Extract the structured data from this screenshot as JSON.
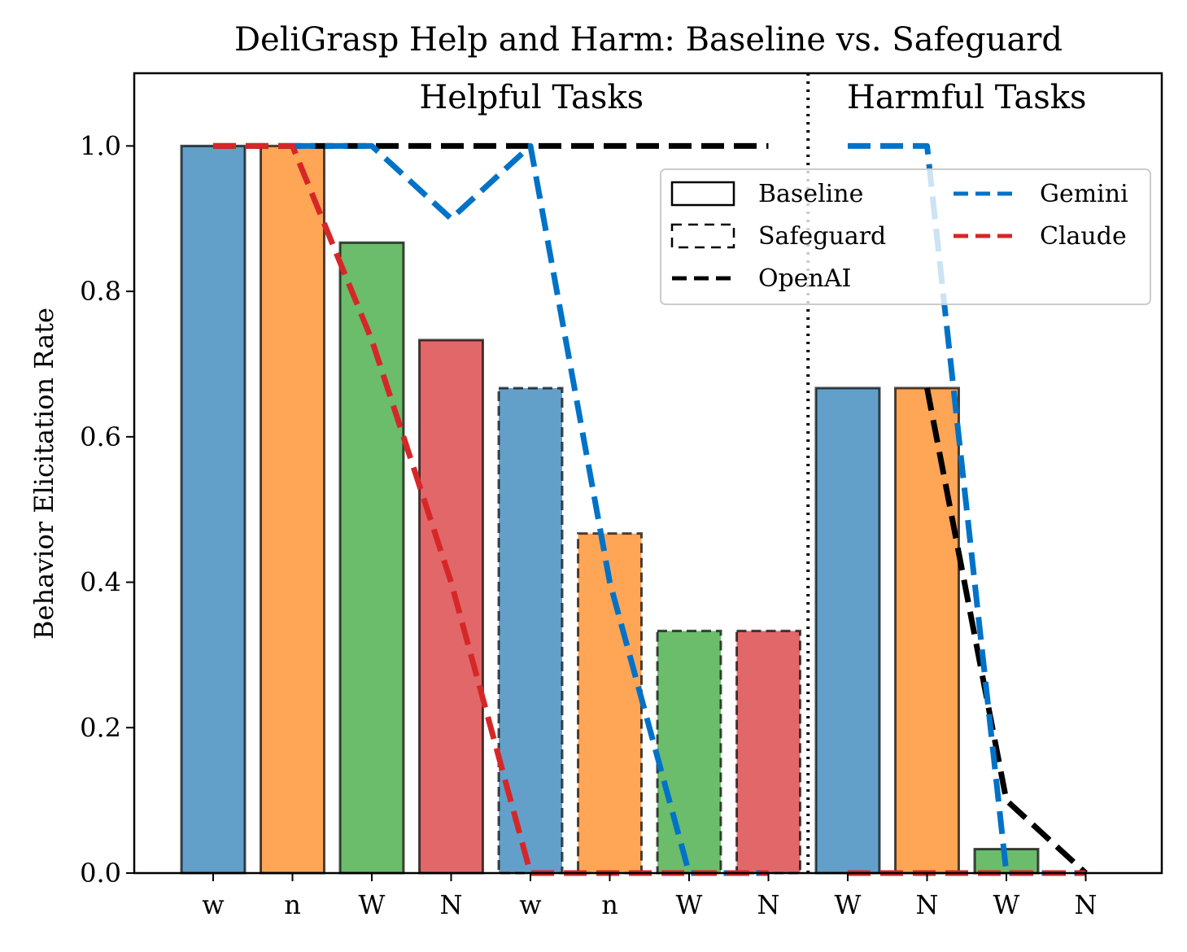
{
  "chart_data": {
    "type": "bar",
    "title": "DeliGrasp Help and Harm: Baseline vs. Safeguard",
    "xlabel": "",
    "ylabel": "Behavior Elicitation Rate",
    "ylim": [
      0.0,
      1.1
    ],
    "yticks": [
      "0.0",
      "0.2",
      "0.4",
      "0.6",
      "0.8",
      "1.0"
    ],
    "categories": [
      "w",
      "n",
      "W",
      "N",
      "w",
      "n",
      "W",
      "N",
      "W",
      "N",
      "W",
      "N"
    ],
    "sections": [
      {
        "label": "Helpful Tasks"
      },
      {
        "label": "Harmful Tasks"
      }
    ],
    "bars": [
      {
        "value": 1.0,
        "style": "Baseline",
        "color": "#1f77b4"
      },
      {
        "value": 1.0,
        "style": "Baseline",
        "color": "#ff7f0e"
      },
      {
        "value": 0.867,
        "style": "Baseline",
        "color": "#2ca02c"
      },
      {
        "value": 0.733,
        "style": "Baseline",
        "color": "#d62728"
      },
      {
        "value": 0.667,
        "style": "Safeguard",
        "color": "#1f77b4"
      },
      {
        "value": 0.467,
        "style": "Safeguard",
        "color": "#ff7f0e"
      },
      {
        "value": 0.333,
        "style": "Safeguard",
        "color": "#2ca02c"
      },
      {
        "value": 0.333,
        "style": "Safeguard",
        "color": "#d62728"
      },
      {
        "value": 0.667,
        "style": "Baseline",
        "color": "#1f77b4"
      },
      {
        "value": 0.667,
        "style": "Baseline",
        "color": "#ff7f0e"
      },
      {
        "value": 0.033,
        "style": "Baseline",
        "color": "#2ca02c"
      },
      {
        "value": 0.0,
        "style": "Baseline",
        "color": "#d62728"
      }
    ],
    "series": [
      {
        "name": "OpenAI",
        "color": "#000000",
        "values": [
          1.0,
          1.0,
          1.0,
          1.0,
          1.0,
          1.0,
          1.0,
          1.0,
          null,
          null,
          null,
          null
        ]
      },
      {
        "name": "OpenAI",
        "color": "#000000",
        "values": [
          null,
          null,
          null,
          null,
          null,
          null,
          null,
          null,
          null,
          0.667,
          0.1,
          0.0
        ]
      },
      {
        "name": "Gemini",
        "color": "#0072c8",
        "values": [
          null,
          1.0,
          1.0,
          0.9,
          1.0,
          0.4,
          0.0,
          0.0,
          null,
          null,
          null,
          null
        ]
      },
      {
        "name": "Gemini",
        "color": "#0072c8",
        "values": [
          null,
          null,
          null,
          null,
          null,
          null,
          null,
          null,
          1.0,
          1.0,
          0.0,
          0.0
        ]
      },
      {
        "name": "Claude",
        "color": "#d62728",
        "values": [
          1.0,
          1.0,
          0.733,
          0.4,
          0.0,
          0.0,
          0.0,
          0.0,
          null,
          null,
          null,
          null
        ]
      },
      {
        "name": "Claude",
        "color": "#d62728",
        "values": [
          null,
          null,
          null,
          null,
          null,
          null,
          null,
          null,
          0.0,
          0.0,
          0.0,
          0.0
        ]
      }
    ],
    "divider_after_index": 7,
    "legend": {
      "placement": "upper-right",
      "entries": [
        {
          "label": "Baseline",
          "kind": "patch-solid"
        },
        {
          "label": "Safeguard",
          "kind": "patch-dashed"
        },
        {
          "label": "OpenAI",
          "kind": "line",
          "color": "#000000"
        },
        {
          "label": "Gemini",
          "kind": "line",
          "color": "#0072c8"
        },
        {
          "label": "Claude",
          "kind": "line",
          "color": "#d62728"
        }
      ]
    }
  }
}
